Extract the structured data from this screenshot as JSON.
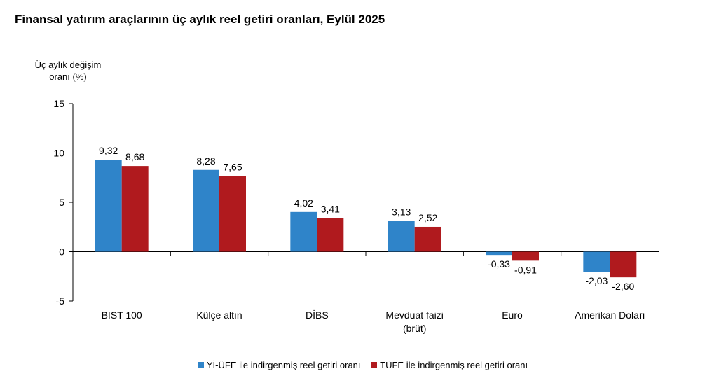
{
  "colors": {
    "series_1": "#2f84c9",
    "series_2": "#b01a1e",
    "axis": "#000000"
  },
  "chart_data": {
    "type": "bar",
    "title": "Finansal yatırım araçlarının üç aylık reel getiri oranları, Eylül 2025",
    "ylabel": [
      "Üç aylık değişim",
      "oranı (%)"
    ],
    "xlabel": "",
    "ylim": [
      -5,
      15
    ],
    "yticks": [
      15,
      10,
      5,
      0,
      -5
    ],
    "grid": false,
    "legend_position": "bottom",
    "categories": [
      [
        "BIST 100"
      ],
      [
        "Külçe altın"
      ],
      [
        "DİBS"
      ],
      [
        "Mevduat faizi",
        "(brüt)"
      ],
      [
        "Euro"
      ],
      [
        "Amerikan Doları"
      ]
    ],
    "series": [
      {
        "name": "Yİ-ÜFE ile indirgenmiş reel getiri oranı",
        "values": [
          9.32,
          8.28,
          4.02,
          3.13,
          -0.33,
          -2.03
        ],
        "labels": [
          "9,32",
          "8,28",
          "4,02",
          "3,13",
          "-0,33",
          "-2,03"
        ]
      },
      {
        "name": "TÜFE ile indirgenmiş reel getiri oranı",
        "values": [
          8.68,
          7.65,
          3.41,
          2.52,
          -0.91,
          -2.6
        ],
        "labels": [
          "8,68",
          "7,65",
          "3,41",
          "2,52",
          "-0,91",
          "-2,60"
        ]
      }
    ]
  }
}
